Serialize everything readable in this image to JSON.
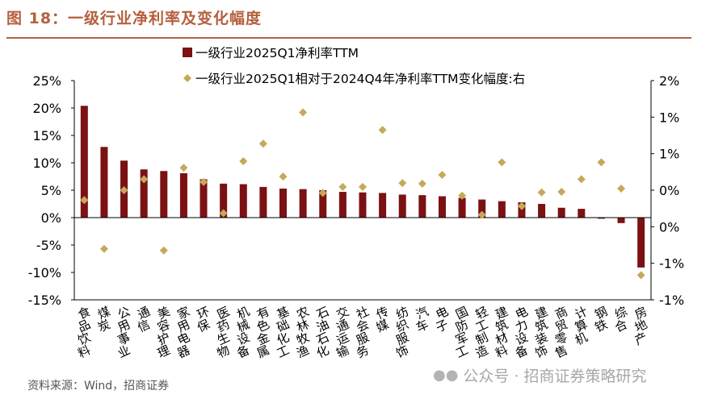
{
  "figure": {
    "title": "图 18：一级行业净利率及变化幅度",
    "source": "资料来源：Wind，招商证券",
    "watermark": "公众号 · 招商证券策略研究"
  },
  "colors": {
    "bar": "#7b1113",
    "marker": "#c5a95a",
    "title": "#b5603e",
    "axis": "#000000"
  },
  "icons": {
    "watermark": "wechat-icon"
  },
  "chart_data": {
    "type": "bar",
    "categories": [
      "食品饮料",
      "煤炭",
      "公用事业",
      "通信",
      "美容护理",
      "家用电器",
      "环保",
      "医药生物",
      "机械设备",
      "有色金属",
      "基础化工",
      "农林牧渔",
      "石油石化",
      "交通运输",
      "社会服务",
      "传媒",
      "纺织服饰",
      "汽车",
      "电子",
      "国防军工",
      "轻工制造",
      "建筑材料",
      "电力设备",
      "建筑装饰",
      "商贸零售",
      "计算机",
      "钢铁",
      "综合",
      "房地产"
    ],
    "series": [
      {
        "name": "一级行业2025Q1净利率TTM",
        "axis": "left",
        "values": [
          20.4,
          12.9,
          10.4,
          8.8,
          8.5,
          8.1,
          7.0,
          6.2,
          6.1,
          5.6,
          5.3,
          5.2,
          5.0,
          4.7,
          4.6,
          4.5,
          4.2,
          4.1,
          3.9,
          3.6,
          3.3,
          3.0,
          2.8,
          2.5,
          1.8,
          1.6,
          -0.2,
          -1.0,
          -9.1
        ]
      },
      {
        "name": "一级行业2025Q1相对于2024Q4年净利率TTM变化幅度:右",
        "axis": "right",
        "values": [
          -0.18,
          -1.07,
          0.0,
          0.2,
          -1.1,
          0.41,
          0.15,
          -0.42,
          0.53,
          0.85,
          0.25,
          1.42,
          -0.05,
          0.06,
          0.06,
          1.1,
          0.13,
          0.12,
          0.28,
          -0.1,
          -0.45,
          0.51,
          -0.29,
          -0.04,
          -0.03,
          0.2,
          0.51,
          0.03,
          -1.55
        ]
      }
    ],
    "y_left": {
      "min": -15,
      "max": 25,
      "step": 5,
      "ticks": [
        "25%",
        "20%",
        "15%",
        "10%",
        "5%",
        "0%",
        "-5%",
        "-10%",
        "-15%"
      ]
    },
    "y_right": {
      "min": -2,
      "max": 2,
      "ticks": [
        "2%",
        "1%",
        "1%",
        "0%",
        "0%",
        "-1%",
        "-1%"
      ]
    },
    "legend": {
      "position": "top-left"
    },
    "grid": false
  }
}
